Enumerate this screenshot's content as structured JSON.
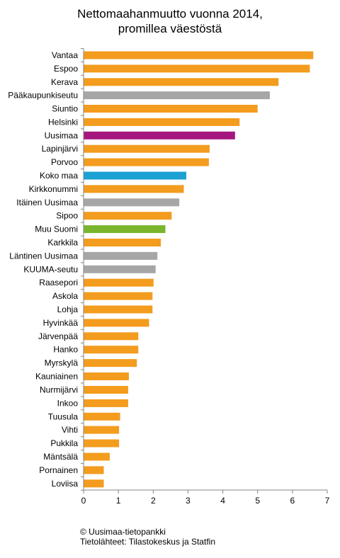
{
  "chart_data": {
    "type": "bar",
    "orientation": "horizontal",
    "title": [
      "Nettomaahanmuutto vuonna 2014,",
      "promillea väestöstä"
    ],
    "categories": [
      "Vantaa",
      "Espoo",
      "Kerava",
      "Pääkaupunkiseutu",
      "Siuntio",
      "Helsinki",
      "Uusimaa",
      "Lapinjärvi",
      "Porvoo",
      "Koko maa",
      "Kirkkonummi",
      "Itäinen Uusimaa",
      "Sipoo",
      "Muu Suomi",
      "Karkkila",
      "Läntinen Uusimaa",
      "KUUMA-seutu",
      "Raasepori",
      "Askola",
      "Lohja",
      "Hyvinkää",
      "Järvenpää",
      "Hanko",
      "Myrskylä",
      "Kauniainen",
      "Nurmijärvi",
      "Inkoo",
      "Tuusula",
      "Vihti",
      "Pukkila",
      "Mäntsälä",
      "Pornainen",
      "Loviisa"
    ],
    "values": [
      6.6,
      6.5,
      5.6,
      5.35,
      5.0,
      4.48,
      4.35,
      3.62,
      3.6,
      2.95,
      2.88,
      2.75,
      2.53,
      2.35,
      2.22,
      2.12,
      2.07,
      2.01,
      1.98,
      1.98,
      1.88,
      1.57,
      1.57,
      1.53,
      1.3,
      1.28,
      1.28,
      1.05,
      1.02,
      1.02,
      0.75,
      0.58,
      0.58
    ],
    "colors": [
      "#f39c1e",
      "#f39c1e",
      "#f39c1e",
      "#a6a6a6",
      "#f39c1e",
      "#f39c1e",
      "#a5177f",
      "#f39c1e",
      "#f39c1e",
      "#1aa2d3",
      "#f39c1e",
      "#a6a6a6",
      "#f39c1e",
      "#7ab52e",
      "#f39c1e",
      "#a6a6a6",
      "#a6a6a6",
      "#f39c1e",
      "#f39c1e",
      "#f39c1e",
      "#f39c1e",
      "#f39c1e",
      "#f39c1e",
      "#f39c1e",
      "#f39c1e",
      "#f39c1e",
      "#f39c1e",
      "#f39c1e",
      "#f39c1e",
      "#f39c1e",
      "#f39c1e",
      "#f39c1e",
      "#f39c1e"
    ],
    "xlim": [
      0,
      7
    ],
    "xticks": [
      "0",
      "1",
      "2",
      "3",
      "4",
      "5",
      "6",
      "7"
    ],
    "grid": false,
    "legend": "none"
  },
  "footer": {
    "line1": "© Uusimaa-tietopankki",
    "line2": "Tietolähteet:  Tilastokeskus ja Statfin"
  }
}
